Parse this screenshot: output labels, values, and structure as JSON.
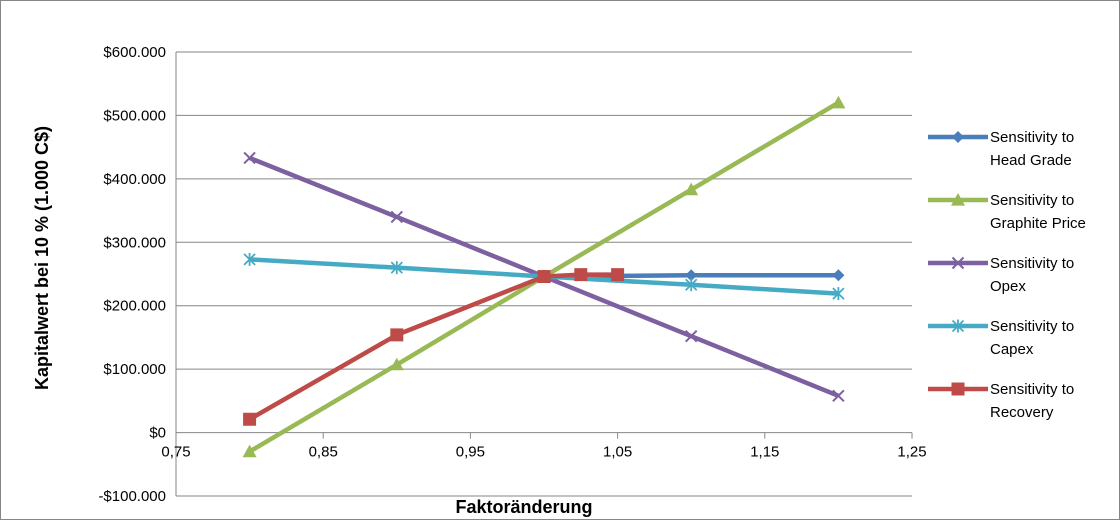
{
  "chart_data": {
    "type": "line",
    "xlabel": "Faktoränderung",
    "ylabel": "Kapitalwert bei 10 % (1.000 C$)",
    "xlim": [
      0.75,
      1.25
    ],
    "ylim": [
      -100000,
      600000
    ],
    "x_ticks": [
      {
        "value": 0.75,
        "label": "0,75"
      },
      {
        "value": 0.85,
        "label": "0,85"
      },
      {
        "value": 0.95,
        "label": "0,95"
      },
      {
        "value": 1.05,
        "label": "1,05"
      },
      {
        "value": 1.15,
        "label": "1,15"
      },
      {
        "value": 1.25,
        "label": "1,25"
      }
    ],
    "y_ticks": [
      {
        "value": -100000,
        "label": "-$100.000"
      },
      {
        "value": 0,
        "label": "$0"
      },
      {
        "value": 100000,
        "label": "$100.000"
      },
      {
        "value": 200000,
        "label": "$200.000"
      },
      {
        "value": 300000,
        "label": "$300.000"
      },
      {
        "value": 400000,
        "label": "$400.000"
      },
      {
        "value": 500000,
        "label": "$500.000"
      },
      {
        "value": 600000,
        "label": "$600.000"
      }
    ],
    "grid": {
      "horizontal": true,
      "vertical": false
    },
    "legend_position": "right",
    "series": [
      {
        "name": "Sensitivity to Head Grade",
        "legend_lines": [
          "Sensitivity to",
          "Head Grade"
        ],
        "color": "#4a7ebb",
        "marker": "diamond",
        "points": [
          [
            1.0,
            246000
          ],
          [
            1.1,
            248000
          ],
          [
            1.2,
            248000
          ]
        ]
      },
      {
        "name": "Sensitivity to Graphite Price",
        "legend_lines": [
          "Sensitivity to",
          "Graphite Price"
        ],
        "color": "#98b954",
        "marker": "triangle",
        "points": [
          [
            0.8,
            -30000
          ],
          [
            0.9,
            107000
          ],
          [
            1.0,
            246000
          ],
          [
            1.1,
            383000
          ],
          [
            1.2,
            520000
          ]
        ]
      },
      {
        "name": "Sensitivity to Opex",
        "legend_lines": [
          "Sensitivity to",
          "Opex"
        ],
        "color": "#7d60a0",
        "marker": "x",
        "points": [
          [
            0.8,
            433000
          ],
          [
            0.9,
            340000
          ],
          [
            1.0,
            246000
          ],
          [
            1.1,
            152000
          ],
          [
            1.2,
            58000
          ]
        ]
      },
      {
        "name": "Sensitivity to Capex",
        "legend_lines": [
          "Sensitivity to",
          "Capex"
        ],
        "color": "#46aac5",
        "marker": "star",
        "points": [
          [
            0.8,
            273000
          ],
          [
            0.9,
            260000
          ],
          [
            1.0,
            246000
          ],
          [
            1.1,
            233000
          ],
          [
            1.2,
            219000
          ]
        ]
      },
      {
        "name": "Sensitivity to Recovery",
        "legend_lines": [
          "Sensitivity to",
          "Recovery"
        ],
        "color": "#be4b48",
        "marker": "square",
        "points": [
          [
            0.8,
            21000
          ],
          [
            0.9,
            154000
          ],
          [
            1.0,
            246000
          ],
          [
            1.025,
            249000
          ],
          [
            1.05,
            249000
          ]
        ]
      }
    ]
  }
}
